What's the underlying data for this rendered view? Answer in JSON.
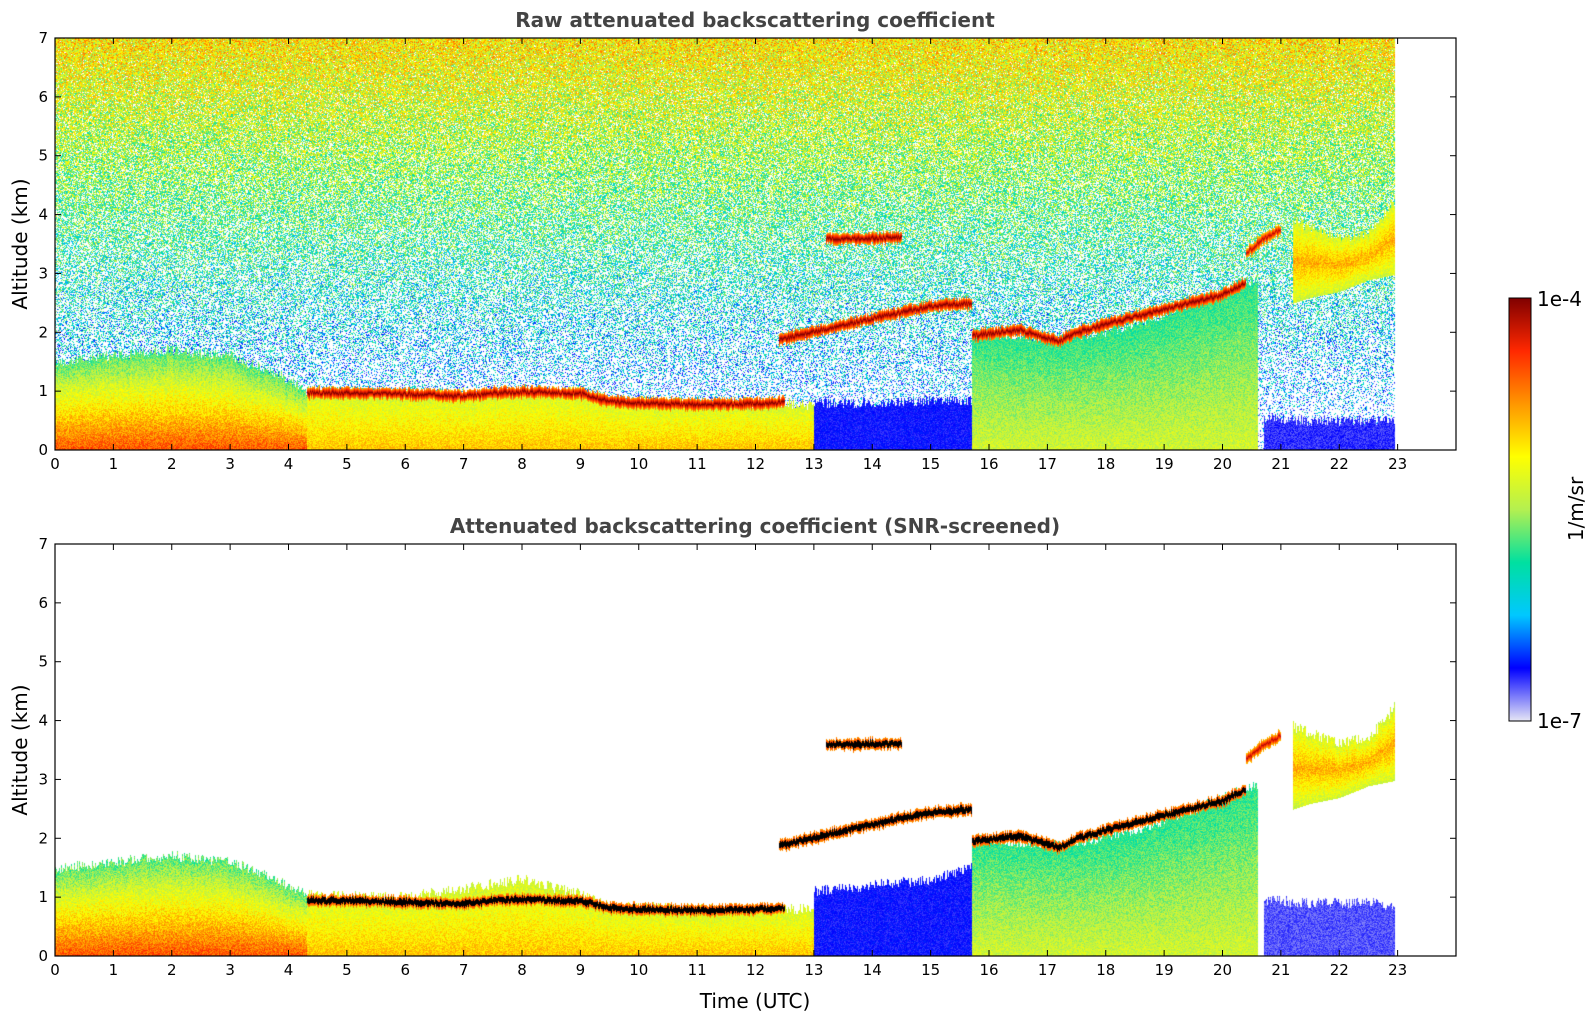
{
  "chart_data": [
    {
      "type": "heatmap",
      "title": "Raw attenuated backscattering coefficient",
      "xlabel": "",
      "ylabel": "Altitude (km)",
      "xlim": [
        0,
        24
      ],
      "ylim": [
        0,
        7
      ],
      "x_ticks": [
        "0",
        "1",
        "2",
        "3",
        "4",
        "5",
        "6",
        "7",
        "8",
        "9",
        "10",
        "11",
        "12",
        "13",
        "14",
        "15",
        "16",
        "17",
        "18",
        "19",
        "20",
        "21",
        "22",
        "23"
      ],
      "y_ticks": [
        "0",
        "1",
        "2",
        "3",
        "4",
        "5",
        "6",
        "7"
      ],
      "data_extent_x": [
        0,
        22.95
      ],
      "noise_background": true,
      "features": [
        {
          "kind": "boundary_layer",
          "t": [
            0,
            1,
            2,
            3,
            4,
            4.3
          ],
          "top_km": [
            1.5,
            1.6,
            1.7,
            1.6,
            1.2,
            1.0
          ],
          "level": 0.78
        },
        {
          "kind": "aerosol_layer",
          "t": [
            4.3,
            6,
            8,
            9,
            9.5,
            11,
            12.5,
            13.0
          ],
          "top_km": [
            1.0,
            0.95,
            1.0,
            1.0,
            0.85,
            0.8,
            0.8,
            0.75
          ],
          "level": 0.7
        },
        {
          "kind": "cloud_layer",
          "t": [
            4.3,
            5,
            6,
            7,
            7.5,
            8,
            8.5,
            9,
            9.5,
            10,
            11,
            12,
            12.5
          ],
          "alt_km": [
            0.98,
            0.97,
            0.96,
            0.92,
            0.97,
            1.0,
            0.98,
            0.97,
            0.83,
            0.8,
            0.78,
            0.8,
            0.82
          ],
          "level": 1.0
        },
        {
          "kind": "clear_low",
          "t": [
            13,
            14,
            15,
            16
          ],
          "top_km": [
            0.8,
            0.8,
            0.85,
            0.8
          ],
          "level": 0.12
        },
        {
          "kind": "aerosol_layer",
          "t": [
            15.7,
            17,
            18,
            19,
            20,
            20.6
          ],
          "top_km": [
            2.0,
            1.9,
            2.0,
            2.3,
            2.7,
            2.9
          ],
          "level": 0.55
        },
        {
          "kind": "cloud_layer",
          "t": [
            12.4,
            13,
            13.8,
            14.5,
            15,
            15.7
          ],
          "alt_km": [
            1.88,
            2.02,
            2.2,
            2.35,
            2.45,
            2.5
          ],
          "level": 1.0
        },
        {
          "kind": "cloud_layer",
          "t": [
            15.7,
            16.5,
            17.2,
            17.5,
            18,
            19,
            20,
            20.4
          ],
          "alt_km": [
            1.95,
            2.05,
            1.85,
            2.0,
            2.15,
            2.4,
            2.65,
            2.85
          ],
          "level": 1.0
        },
        {
          "kind": "cloud_layer",
          "t": [
            13.2,
            13.8,
            14.5
          ],
          "alt_km": [
            3.6,
            3.6,
            3.62
          ],
          "level": 1.0
        },
        {
          "kind": "cloud_layer",
          "t": [
            20.4,
            20.7,
            21.0
          ],
          "alt_km": [
            3.35,
            3.6,
            3.75
          ],
          "level": 0.95
        },
        {
          "kind": "plume",
          "t": [
            21.2,
            21.5,
            22,
            22.5,
            23.0
          ],
          "bottom_km": [
            2.5,
            2.6,
            2.7,
            2.9,
            3.0
          ],
          "top_km": [
            3.9,
            3.8,
            3.6,
            3.7,
            4.3
          ],
          "level": 0.72
        },
        {
          "kind": "clear_low",
          "t": [
            20.7,
            21.5,
            22.5,
            23.0
          ],
          "top_km": [
            0.55,
            0.5,
            0.5,
            0.5
          ],
          "level": 0.1
        }
      ]
    },
    {
      "type": "heatmap",
      "title": "Attenuated backscattering coefficient (SNR-screened)",
      "xlabel": "Time (UTC)",
      "ylabel": "Altitude (km)",
      "xlim": [
        0,
        24
      ],
      "ylim": [
        0,
        7
      ],
      "x_ticks": [
        "0",
        "1",
        "2",
        "3",
        "4",
        "5",
        "6",
        "7",
        "8",
        "9",
        "10",
        "11",
        "12",
        "13",
        "14",
        "15",
        "16",
        "17",
        "18",
        "19",
        "20",
        "21",
        "22",
        "23"
      ],
      "y_ticks": [
        "0",
        "1",
        "2",
        "3",
        "4",
        "5",
        "6",
        "7"
      ],
      "data_extent_x": [
        0,
        22.95
      ],
      "noise_background": false,
      "screened_color": "#000000",
      "features": [
        {
          "kind": "boundary_layer",
          "t": [
            0,
            1,
            2,
            3,
            4,
            4.3
          ],
          "top_km": [
            1.5,
            1.6,
            1.7,
            1.6,
            1.2,
            1.05
          ],
          "level": 0.78
        },
        {
          "kind": "aerosol_layer",
          "t": [
            4.3,
            6,
            8,
            9,
            9.5,
            11,
            12.5,
            13.0
          ],
          "top_km": [
            1.05,
            1.0,
            1.3,
            1.05,
            0.85,
            0.8,
            0.8,
            0.8
          ],
          "level": 0.7
        },
        {
          "kind": "cloud_layer",
          "t": [
            4.3,
            5,
            6,
            7,
            7.5,
            8,
            8.5,
            9,
            9.5,
            10,
            11,
            12,
            12.5
          ],
          "alt_km": [
            0.95,
            0.95,
            0.92,
            0.9,
            0.95,
            0.97,
            0.95,
            0.95,
            0.82,
            0.8,
            0.78,
            0.8,
            0.82
          ],
          "level": 1.0,
          "screened": true
        },
        {
          "kind": "clear_low",
          "t": [
            13,
            14,
            15,
            16
          ],
          "top_km": [
            1.1,
            1.2,
            1.3,
            1.6
          ],
          "level": 0.12
        },
        {
          "kind": "aerosol_layer",
          "t": [
            15.7,
            17,
            18,
            19,
            20,
            20.6
          ],
          "top_km": [
            2.0,
            1.9,
            2.0,
            2.3,
            2.7,
            2.9
          ],
          "level": 0.55
        },
        {
          "kind": "cloud_layer",
          "t": [
            12.4,
            13,
            13.8,
            14.5,
            15,
            15.7
          ],
          "alt_km": [
            1.88,
            2.02,
            2.2,
            2.35,
            2.45,
            2.5
          ],
          "level": 1.0,
          "screened": true
        },
        {
          "kind": "cloud_layer",
          "t": [
            15.7,
            16.5,
            17.2,
            17.5,
            18,
            19,
            20,
            20.4
          ],
          "alt_km": [
            1.95,
            2.05,
            1.85,
            2.0,
            2.15,
            2.4,
            2.65,
            2.85
          ],
          "level": 1.0,
          "screened": true
        },
        {
          "kind": "cloud_layer",
          "t": [
            13.2,
            13.8,
            14.5
          ],
          "alt_km": [
            3.6,
            3.6,
            3.62
          ],
          "level": 1.0,
          "screened": true
        },
        {
          "kind": "cloud_layer",
          "t": [
            20.4,
            20.7,
            21.0
          ],
          "alt_km": [
            3.35,
            3.6,
            3.75
          ],
          "level": 0.95
        },
        {
          "kind": "plume",
          "t": [
            21.2,
            21.5,
            22,
            22.5,
            23.0
          ],
          "bottom_km": [
            2.5,
            2.6,
            2.7,
            2.9,
            3.0
          ],
          "top_km": [
            3.9,
            3.8,
            3.6,
            3.7,
            4.3
          ],
          "level": 0.72
        },
        {
          "kind": "clear_low",
          "t": [
            20.7,
            21.5,
            22.5,
            23.0
          ],
          "top_km": [
            0.95,
            0.9,
            0.9,
            0.85
          ],
          "level": 0.08
        }
      ]
    }
  ],
  "colorbar": {
    "label": "1/m/sr",
    "max_label": "1e-4",
    "min_label": "1e-7",
    "scale": "log",
    "colors": [
      "#e6e6f5",
      "#0000ff",
      "#00c8ff",
      "#00e0a0",
      "#b4f050",
      "#ffff00",
      "#ff9600",
      "#ff2800",
      "#800000"
    ]
  }
}
